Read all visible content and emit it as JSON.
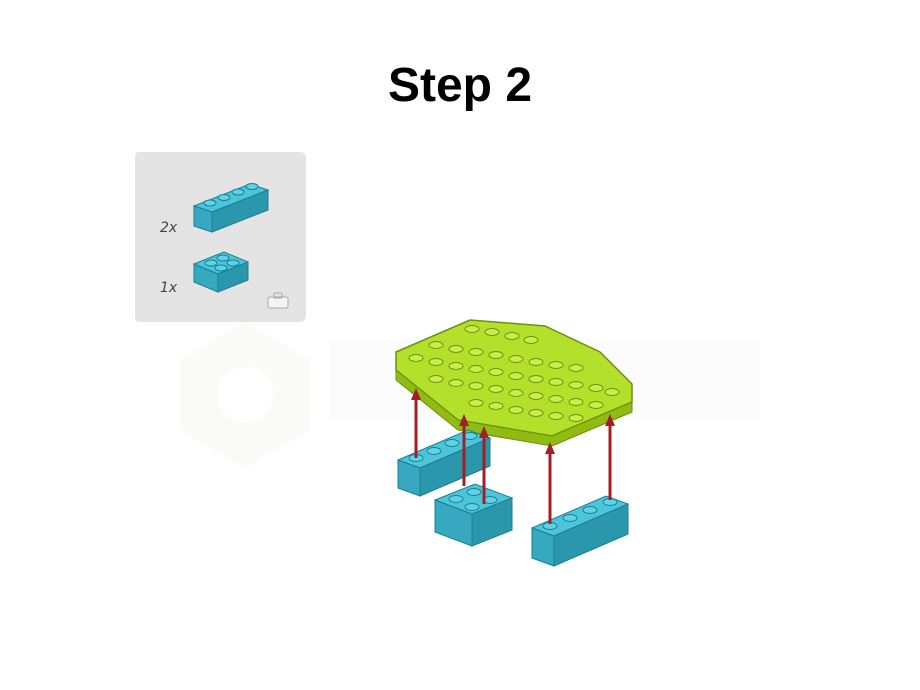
{
  "page": {
    "title": "Step 2"
  },
  "parts_list": {
    "items": [
      {
        "quantity": "2x",
        "part": "azure-brick-1x4"
      },
      {
        "quantity": "1x",
        "part": "azure-brick-2x2"
      }
    ]
  },
  "colors": {
    "brick_azure": "#3fb4cc",
    "plate_lime": "#b3e02a",
    "arrow_red": "#a31f24",
    "panel_bg": "#e4e4e4"
  }
}
